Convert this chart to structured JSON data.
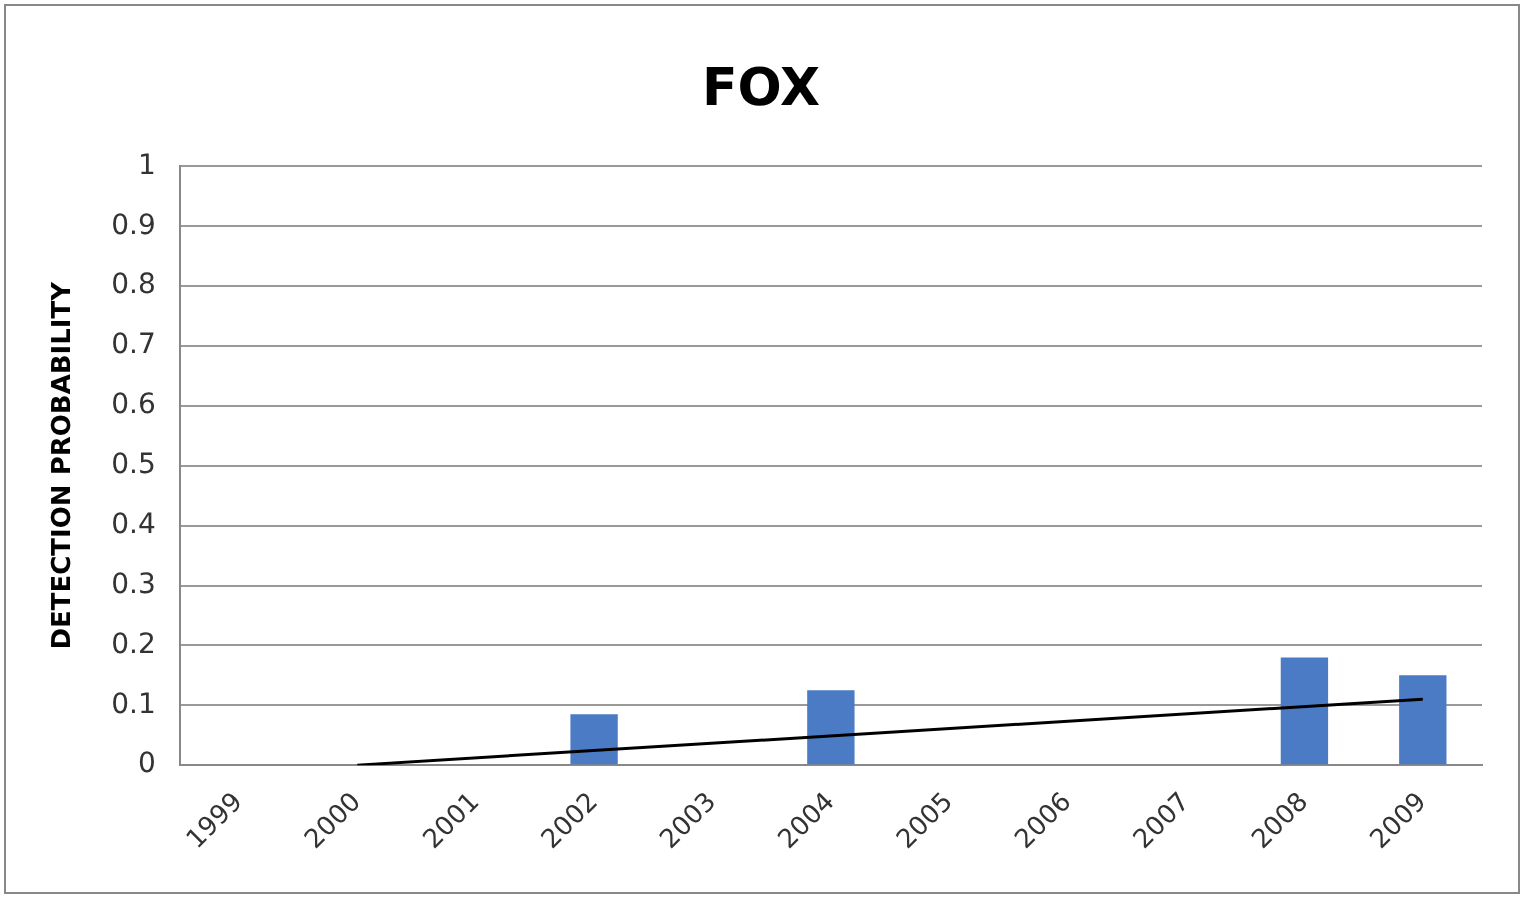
{
  "chart_data": {
    "type": "bar",
    "title": "FOX",
    "ylabel": "DETECTION PROBABILITY",
    "categories": [
      "1999",
      "2000",
      "2001",
      "2002",
      "2003",
      "2004",
      "2005",
      "2006",
      "2007",
      "2008",
      "2009"
    ],
    "series": [
      {
        "color": "#4a7bc4",
        "values": [
          null,
          null,
          null,
          0.085,
          null,
          0.125,
          null,
          null,
          null,
          0.18,
          0.15
        ]
      },
      {
        "type": "line",
        "color": "#000000",
        "values": [
          null,
          0,
          null,
          null,
          null,
          null,
          null,
          null,
          null,
          null,
          0.11
        ]
      }
    ],
    "ylim": [
      0,
      1
    ],
    "yticks": [
      0,
      0.1,
      0.2,
      0.3,
      0.4,
      0.5,
      0.6,
      0.7,
      0.8,
      0.9,
      1
    ],
    "grid": "y",
    "legend": false,
    "marker": "none"
  }
}
